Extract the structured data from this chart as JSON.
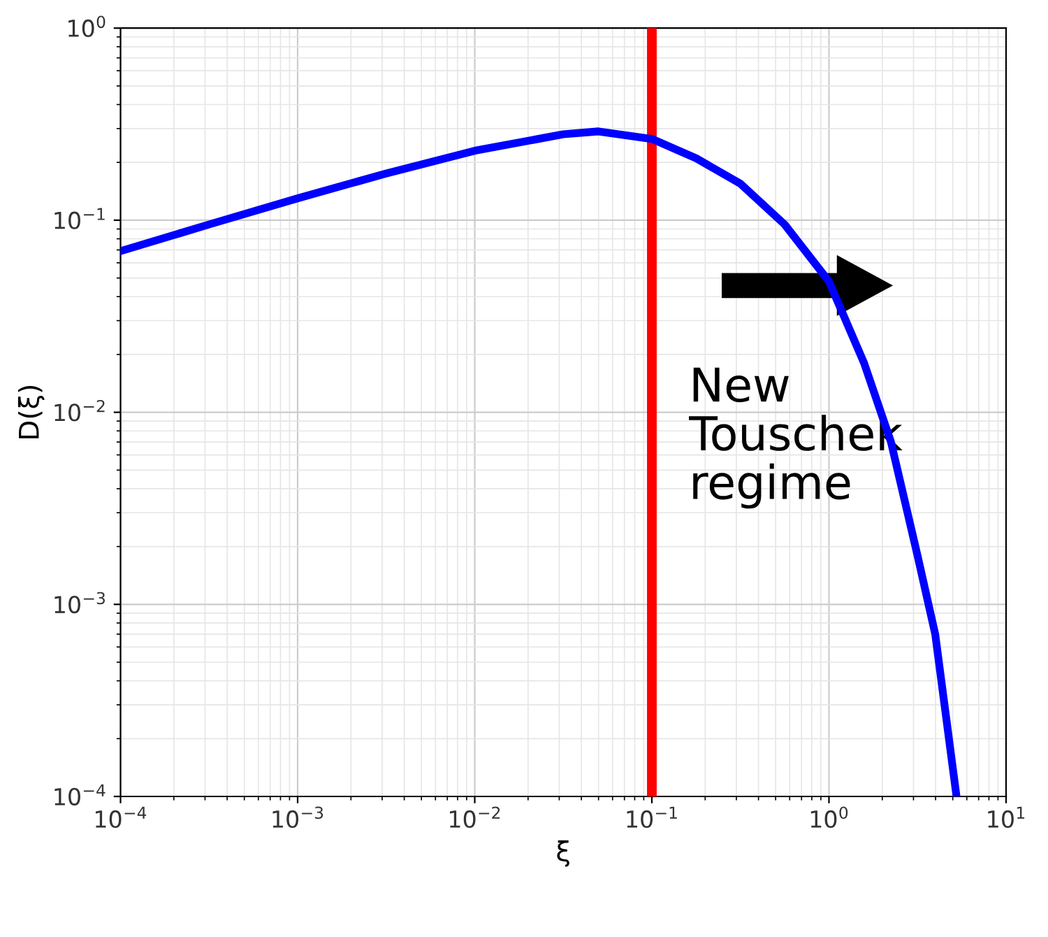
{
  "chart_data": {
    "type": "line",
    "xlabel": "ξ",
    "ylabel": "D(ξ)",
    "log": "xy",
    "x": [
      0.0001,
      0.000316,
      0.001,
      0.00316,
      0.01,
      0.0316,
      0.05,
      0.1,
      0.178,
      0.316,
      0.562,
      1,
      1.58,
      2.24,
      3.16,
      3.98,
      5.25
    ],
    "series": [
      {
        "color": "#0000ff",
        "values": [
          0.069,
          0.095,
          0.13,
          0.175,
          0.23,
          0.28,
          0.29,
          0.265,
          0.21,
          0.155,
          0.095,
          0.048,
          0.018,
          0.007,
          0.0018,
          0.0007,
          0.0001
        ]
      }
    ],
    "xlim": [
      0.0001,
      10
    ],
    "ylim": [
      0.0001,
      1
    ],
    "xticks": [
      {
        "value": 0.0001,
        "label": "10$^{−4}$"
      },
      {
        "value": 0.001,
        "label": "10$^{−3}$"
      },
      {
        "value": 0.01,
        "label": "10$^{−2}$"
      },
      {
        "value": 0.1,
        "label": "10$^{−1}$"
      },
      {
        "value": 1,
        "label": "10$^{0}$"
      },
      {
        "value": 10,
        "label": "10$^{1}$"
      }
    ],
    "yticks": [
      {
        "value": 0.0001,
        "label": "10$^{−4}$"
      },
      {
        "value": 0.001,
        "label": "10$^{−3}$"
      },
      {
        "value": 0.01,
        "label": "10$^{−2}$"
      },
      {
        "value": 0.1,
        "label": "10$^{−1}$"
      },
      {
        "value": 1,
        "label": "10$^{0}$"
      }
    ],
    "ref_lines": [
      {
        "axis": "x",
        "value": 0.1,
        "color": "#ff0000"
      }
    ],
    "annotations": [
      "New\nTouschek\nregime"
    ],
    "grid": true,
    "marker": "none",
    "line_style": "solid",
    "legend": false
  }
}
